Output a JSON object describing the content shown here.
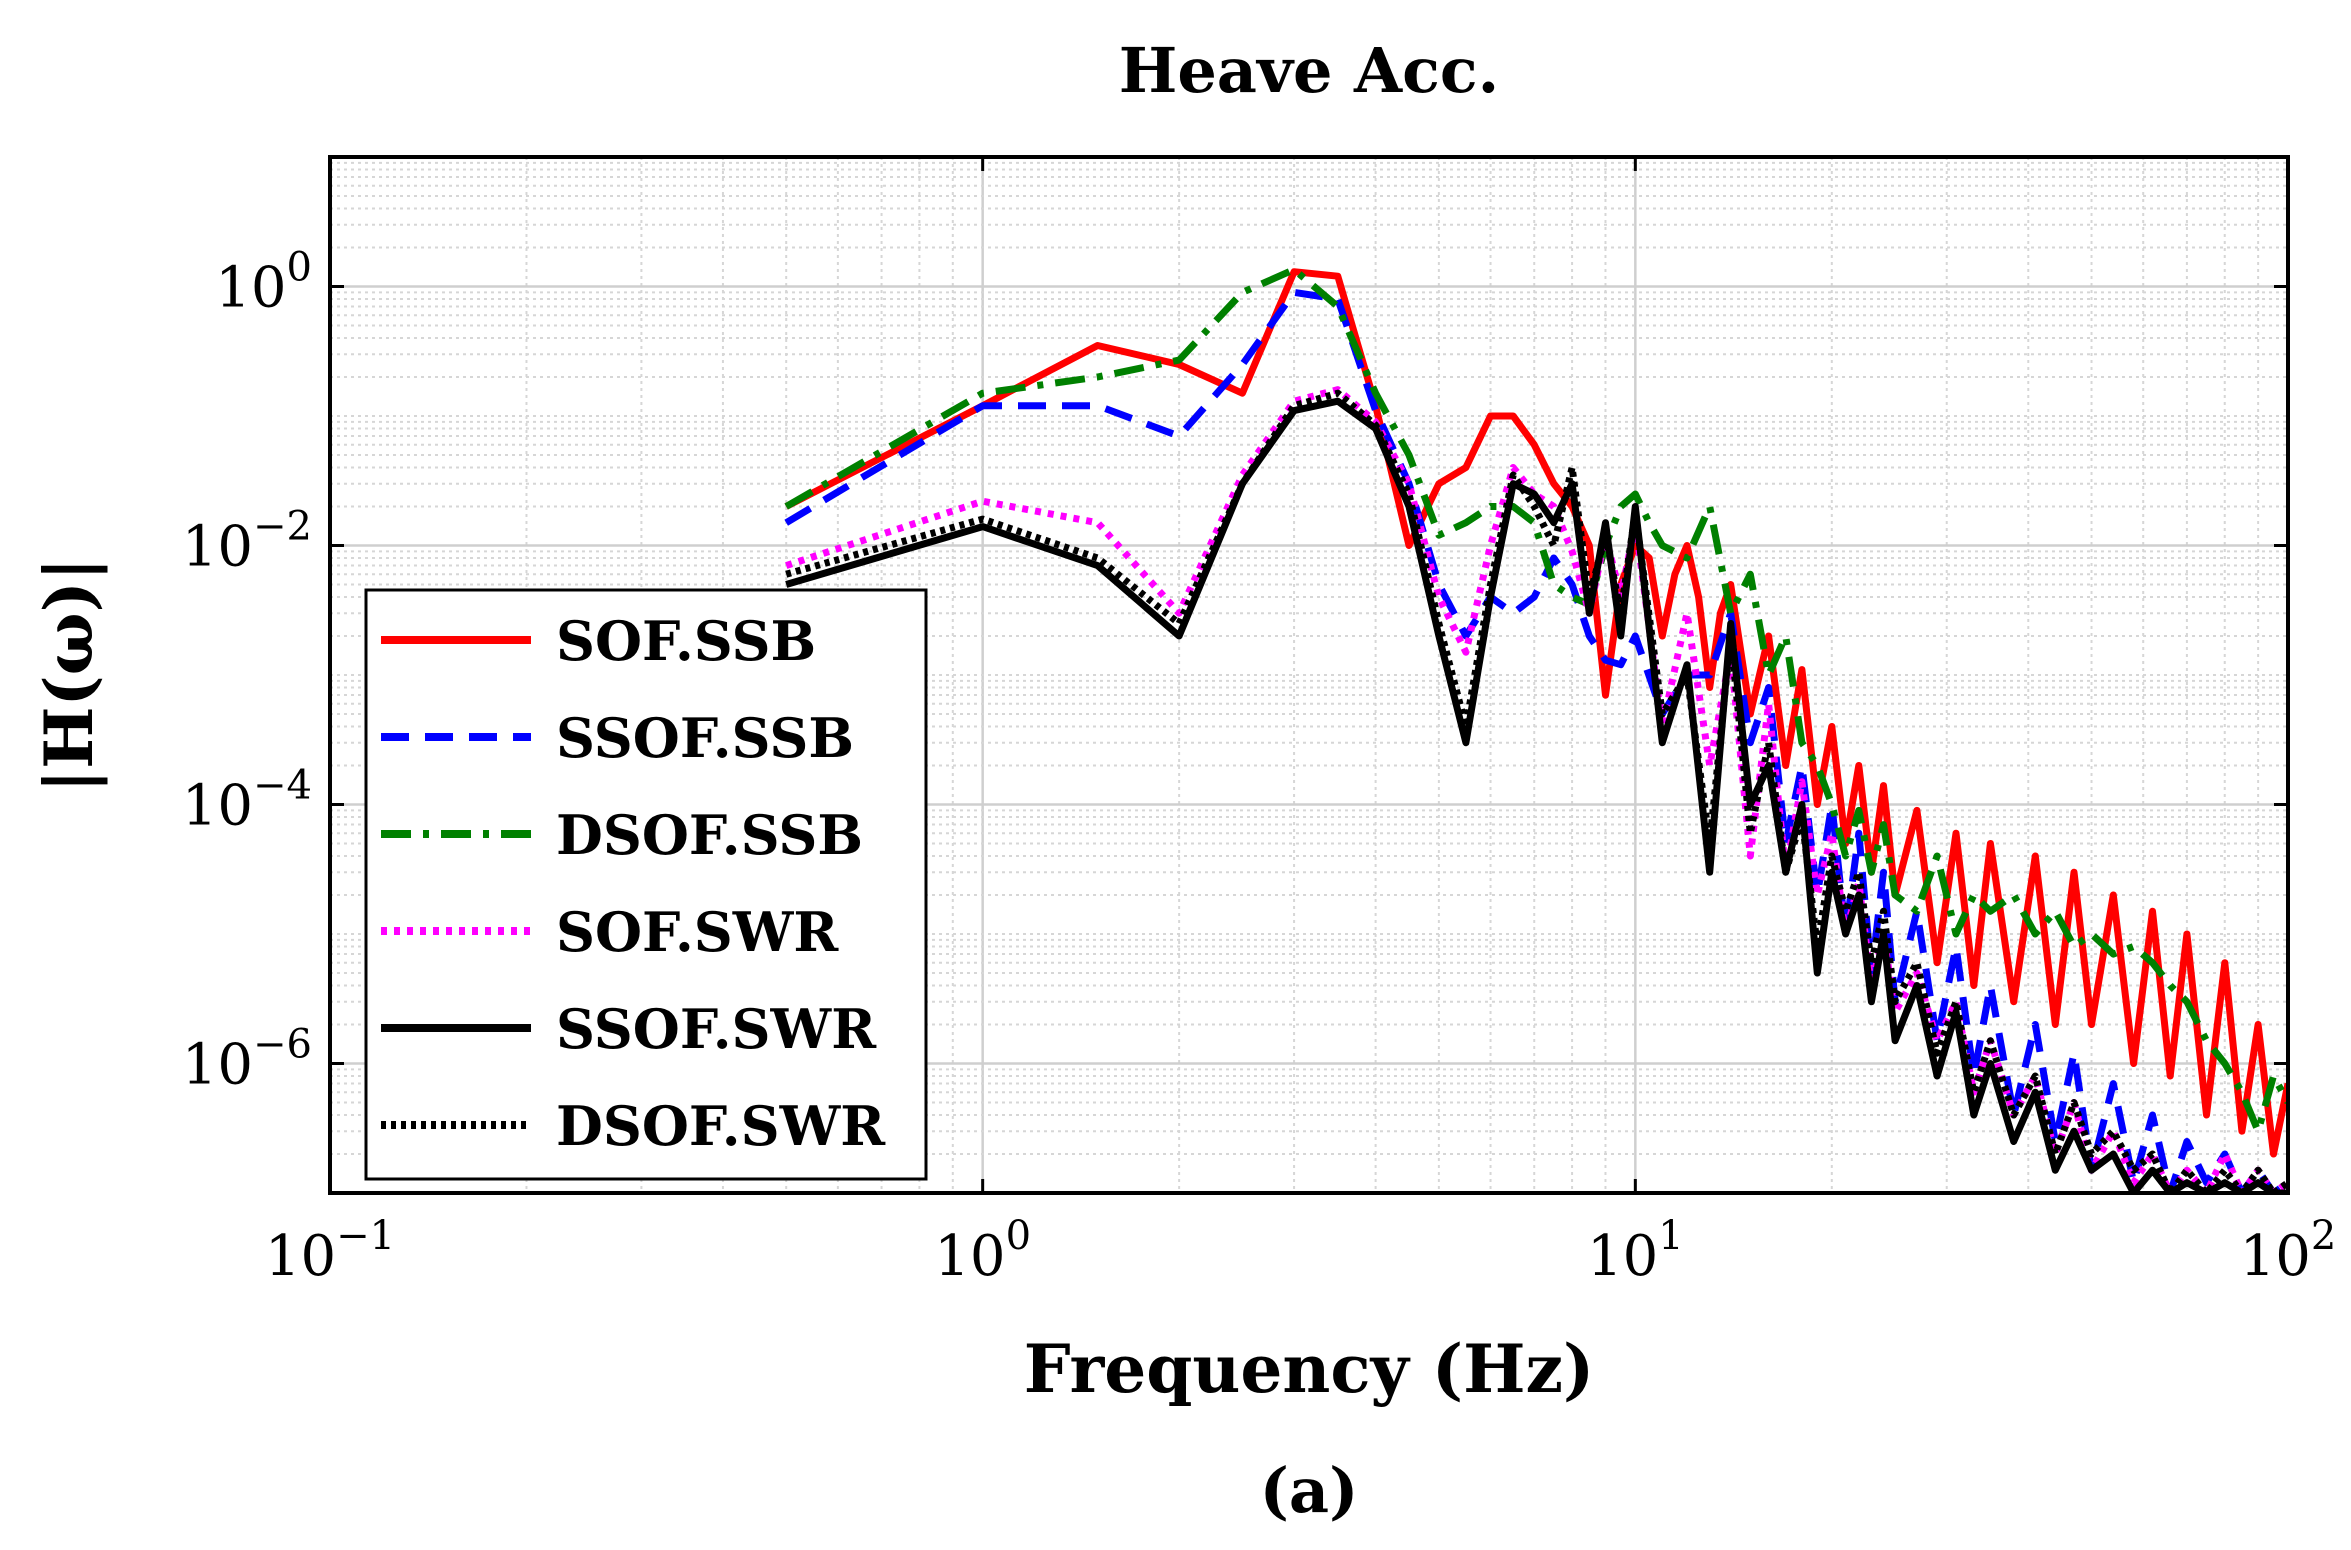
{
  "chart_data": {
    "type": "line",
    "title": "Heave Acc.",
    "xlabel": "Frequency (Hz)",
    "ylabel": "|H(ω)|",
    "caption": "(a)",
    "xscale": "log",
    "yscale": "log",
    "xlim": [
      0.1,
      100
    ],
    "ylim": [
      1e-07,
      10
    ],
    "grid": true,
    "minor_grid": true,
    "legend_position": "bottom-left",
    "x_ticks": [
      {
        "value": 0.1,
        "base": "10",
        "exp": "−1"
      },
      {
        "value": 1,
        "base": "10",
        "exp": "0"
      },
      {
        "value": 10,
        "base": "10",
        "exp": "1"
      },
      {
        "value": 100,
        "base": "10",
        "exp": "2"
      }
    ],
    "y_ticks": [
      {
        "value": 1,
        "base": "10",
        "exp": "0"
      },
      {
        "value": 0.01,
        "base": "10",
        "exp": "−2"
      },
      {
        "value": 0.0001,
        "base": "10",
        "exp": "−4"
      },
      {
        "value": 1e-06,
        "base": "10",
        "exp": "−6"
      }
    ],
    "series": [
      {
        "name": "SOF.SSB",
        "color": "#ff0000",
        "style": "solid",
        "x": [
          0.5,
          1.0,
          1.5,
          2.0,
          2.5,
          3.0,
          3.5,
          4.0,
          4.5,
          5.0,
          5.5,
          6.0,
          6.5,
          7.0,
          7.5,
          8.0,
          8.5,
          9.0,
          9.5,
          10.0,
          10.5,
          11.0,
          11.5,
          12.0,
          12.5,
          13.0,
          13.5,
          14.0,
          15,
          16,
          17,
          18,
          19,
          20,
          21,
          22,
          23,
          24,
          25,
          27,
          29,
          31,
          33,
          35,
          38,
          41,
          44,
          47,
          50,
          54,
          58,
          62,
          66,
          70,
          75,
          80,
          85,
          90,
          95,
          100
        ],
        "y": [
          0.02,
          0.12,
          0.35,
          0.25,
          0.15,
          1.3,
          1.2,
          0.12,
          0.01,
          0.03,
          0.04,
          0.1,
          0.1,
          0.06,
          0.03,
          0.02,
          0.01,
          0.0007,
          0.005,
          0.01,
          0.008,
          0.002,
          0.006,
          0.01,
          0.004,
          0.0008,
          0.003,
          0.005,
          0.0005,
          0.002,
          0.0002,
          0.0011,
          0.0001,
          0.0004,
          5e-05,
          0.0002,
          3e-05,
          0.00014,
          2e-05,
          9e-05,
          6e-06,
          6e-05,
          4e-06,
          5e-05,
          3e-06,
          4e-05,
          2e-06,
          3e-05,
          2e-06,
          2e-05,
          1e-06,
          1.5e-05,
          8e-07,
          1e-05,
          4e-07,
          6e-06,
          3e-07,
          2e-06,
          2e-07,
          7e-07
        ]
      },
      {
        "name": "SSOF.SSB",
        "color": "#0000ff",
        "style": "dashed",
        "x": [
          0.5,
          1.0,
          1.5,
          2.0,
          2.5,
          3.0,
          3.5,
          4.0,
          4.5,
          5.0,
          5.5,
          6.0,
          6.5,
          7.0,
          7.5,
          8.0,
          8.5,
          9.0,
          9.5,
          10.0,
          11,
          12,
          13,
          14,
          15,
          16,
          17,
          18,
          19,
          20,
          21,
          22,
          23,
          24,
          25,
          27,
          29,
          31,
          33,
          35,
          38,
          41,
          44,
          47,
          50,
          54,
          58,
          62,
          66,
          70,
          75,
          80,
          85,
          90,
          95,
          100
        ],
        "y": [
          0.015,
          0.12,
          0.12,
          0.07,
          0.25,
          0.9,
          0.8,
          0.11,
          0.03,
          0.005,
          0.002,
          0.004,
          0.003,
          0.004,
          0.008,
          0.005,
          0.002,
          0.0013,
          0.0012,
          0.002,
          0.0005,
          0.001,
          0.001,
          0.003,
          0.0003,
          0.0008,
          5e-05,
          0.0002,
          2e-05,
          0.0001,
          1e-05,
          6e-05,
          5e-06,
          3e-05,
          3e-06,
          1.5e-05,
          1.5e-06,
          8e-06,
          8e-07,
          4e-06,
          4e-07,
          2e-06,
          2.5e-07,
          1.2e-06,
          1.5e-07,
          7e-07,
          1.2e-07,
          4e-07,
          1e-07,
          2.5e-07,
          1.2e-07,
          2e-07,
          1e-07,
          1.5e-07,
          1e-07,
          1.2e-07
        ]
      },
      {
        "name": "DSOF.SSB",
        "color": "#008000",
        "style": "dashdot",
        "x": [
          0.5,
          1.0,
          1.5,
          2.0,
          2.5,
          3.0,
          3.5,
          4.0,
          4.5,
          5.0,
          5.5,
          6.0,
          6.5,
          7.0,
          7.5,
          8.0,
          8.5,
          9.0,
          9.5,
          10.0,
          10.5,
          11.0,
          12,
          13,
          14,
          15,
          16,
          17,
          18,
          19,
          20,
          21,
          22,
          23,
          24,
          25,
          27,
          29,
          31,
          33,
          35,
          38,
          41,
          44,
          47,
          50,
          54,
          58,
          62,
          66,
          70,
          75,
          80,
          85,
          90,
          95,
          100
        ],
        "y": [
          0.02,
          0.15,
          0.2,
          0.27,
          0.9,
          1.35,
          0.7,
          0.15,
          0.05,
          0.012,
          0.015,
          0.02,
          0.02,
          0.015,
          0.005,
          0.004,
          0.0035,
          0.01,
          0.02,
          0.025,
          0.015,
          0.01,
          0.008,
          0.02,
          0.003,
          0.006,
          0.001,
          0.002,
          0.0003,
          0.0002,
          0.0001,
          4e-05,
          9e-05,
          3e-05,
          7e-05,
          2e-05,
          1.5e-05,
          4e-05,
          1e-05,
          2e-05,
          1.5e-05,
          2e-05,
          1e-05,
          1.5e-05,
          8e-06,
          1e-05,
          7e-06,
          8e-06,
          6e-06,
          4e-06,
          3e-06,
          1.5e-06,
          1e-06,
          6e-07,
          3e-07,
          8e-07,
          5e-07
        ]
      },
      {
        "name": "SOF.SWR",
        "color": "#ff00ff",
        "style": "dotted",
        "x": [
          0.5,
          1.0,
          1.5,
          2.0,
          2.5,
          3.0,
          3.5,
          4.0,
          4.5,
          5.0,
          5.5,
          6.0,
          6.5,
          7.0,
          7.5,
          8.0,
          8.5,
          9.0,
          9.5,
          10.0,
          11,
          12,
          13,
          14,
          15,
          16,
          17,
          18,
          19,
          20,
          21,
          22,
          23,
          24,
          25,
          27,
          29,
          31,
          33,
          35,
          38,
          41,
          44,
          47,
          50,
          54,
          58,
          62,
          66,
          70,
          75,
          80,
          85,
          90,
          95,
          100
        ],
        "y": [
          0.007,
          0.022,
          0.015,
          0.003,
          0.035,
          0.13,
          0.16,
          0.09,
          0.03,
          0.004,
          0.0015,
          0.01,
          0.04,
          0.025,
          0.02,
          0.009,
          0.003,
          0.012,
          0.004,
          0.015,
          0.0004,
          0.003,
          0.0002,
          0.0015,
          4e-05,
          0.0006,
          3e-05,
          0.00015,
          2e-05,
          6e-05,
          1e-05,
          2.5e-05,
          4e-06,
          1e-05,
          2.5e-06,
          5e-06,
          1.5e-06,
          3e-06,
          6e-07,
          1.5e-06,
          4e-07,
          8e-07,
          2e-07,
          5e-07,
          1.5e-07,
          3e-07,
          1.2e-07,
          2e-07,
          1e-07,
          1.5e-07,
          1e-07,
          2e-07,
          1e-07,
          1.5e-07,
          1e-07,
          1.2e-07
        ]
      },
      {
        "name": "SSOF.SWR",
        "color": "#000000",
        "style": "solid",
        "x": [
          0.5,
          1.0,
          1.5,
          2.0,
          2.5,
          3.0,
          3.5,
          4.0,
          4.5,
          5.0,
          5.5,
          6.0,
          6.5,
          7.0,
          7.5,
          8.0,
          8.5,
          9.0,
          9.5,
          10.0,
          11,
          12,
          13,
          14,
          15,
          16,
          17,
          18,
          19,
          20,
          21,
          22,
          23,
          24,
          25,
          27,
          29,
          31,
          33,
          35,
          38,
          41,
          44,
          47,
          50,
          54,
          58,
          62,
          66,
          70,
          75,
          80,
          85,
          90,
          95,
          100
        ],
        "y": [
          0.005,
          0.014,
          0.007,
          0.002,
          0.03,
          0.11,
          0.13,
          0.08,
          0.02,
          0.002,
          0.0003,
          0.004,
          0.03,
          0.025,
          0.015,
          0.03,
          0.003,
          0.015,
          0.002,
          0.02,
          0.0003,
          0.0012,
          3e-05,
          0.0025,
          0.0001,
          0.0002,
          3e-05,
          0.0001,
          5e-06,
          3e-05,
          1e-05,
          2e-05,
          3e-06,
          1e-05,
          1.5e-06,
          4e-06,
          8e-07,
          2.5e-06,
          4e-07,
          1e-06,
          2.5e-07,
          6e-07,
          1.5e-07,
          3e-07,
          1.5e-07,
          2e-07,
          1e-07,
          1.5e-07,
          1e-07,
          1.2e-07,
          1e-07,
          1.2e-07,
          1e-07,
          1.2e-07,
          1e-07,
          1e-07
        ]
      },
      {
        "name": "DSOF.SWR",
        "color": "#000000",
        "style": "densedot",
        "x": [
          0.5,
          1.0,
          1.5,
          2.0,
          2.5,
          3.0,
          3.5,
          4.0,
          4.5,
          5.0,
          5.5,
          6.0,
          6.5,
          7.0,
          7.5,
          8.0,
          8.5,
          9.0,
          9.5,
          10.0,
          11,
          12,
          13,
          14,
          15,
          16,
          17,
          18,
          19,
          20,
          21,
          22,
          23,
          24,
          25,
          27,
          29,
          31,
          33,
          35,
          38,
          41,
          44,
          47,
          50,
          54,
          58,
          62,
          66,
          70,
          75,
          80,
          85,
          90,
          95,
          100
        ],
        "y": [
          0.006,
          0.016,
          0.008,
          0.0025,
          0.03,
          0.12,
          0.15,
          0.085,
          0.025,
          0.0025,
          0.0004,
          0.005,
          0.035,
          0.02,
          0.01,
          0.04,
          0.004,
          0.012,
          0.003,
          0.018,
          0.0005,
          0.001,
          5e-05,
          0.002,
          6e-05,
          0.0003,
          3e-05,
          8e-05,
          8e-06,
          4e-05,
          1.5e-05,
          3e-05,
          6e-06,
          1.5e-05,
          3e-06,
          6e-06,
          1.2e-06,
          3e-06,
          6e-07,
          1.5e-06,
          4e-07,
          8e-07,
          2e-07,
          5e-07,
          2e-07,
          3e-07,
          1.5e-07,
          2e-07,
          1e-07,
          1.5e-07,
          1e-07,
          1.5e-07,
          1e-07,
          1.5e-07,
          1e-07,
          1.2e-07
        ]
      }
    ]
  }
}
